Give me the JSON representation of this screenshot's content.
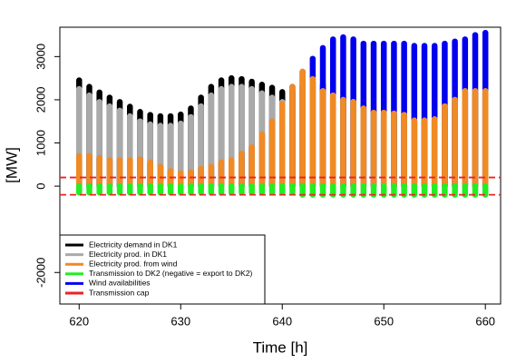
{
  "chart_data": {
    "type": "segments",
    "xlabel": "Time [h]",
    "ylabel": "[MW]",
    "x": [
      620,
      621,
      622,
      623,
      624,
      625,
      626,
      627,
      628,
      629,
      630,
      631,
      632,
      633,
      634,
      635,
      636,
      637,
      638,
      639,
      640,
      641,
      642,
      643,
      644,
      645,
      646,
      647,
      648,
      649,
      650,
      651,
      652,
      653,
      654,
      655,
      656,
      657,
      658,
      659,
      660
    ],
    "xlim": [
      618.1,
      661.5
    ],
    "xticks": [
      620,
      630,
      640,
      650,
      660
    ],
    "ylim": [
      -2730,
      3680
    ],
    "yticks": [
      -2000,
      0,
      1000,
      2000,
      3000
    ],
    "series": [
      {
        "name": "Electricity demand in DK1",
        "color": "#000000",
        "values": [
          2450,
          2300,
          2170,
          2050,
          1950,
          1840,
          1720,
          1650,
          1620,
          1620,
          1660,
          1800,
          2050,
          2300,
          2450,
          2500,
          2480,
          2420,
          2350,
          2280,
          2180,
          2200,
          2320,
          2420,
          2350,
          2150,
          2050,
          1950,
          1900,
          1750,
          1650,
          1650,
          1630,
          1500,
          1500,
          1530,
          1800,
          1950,
          2150,
          2150,
          2150
        ]
      },
      {
        "name": "Electricity prod. in DK1",
        "color": "#aaaaaa",
        "values": [
          2250,
          2100,
          1950,
          1850,
          1750,
          1620,
          1500,
          1430,
          1400,
          1400,
          1450,
          1600,
          1850,
          2100,
          2250,
          2300,
          2300,
          2250,
          2150,
          2050,
          1950,
          2250,
          2650,
          2480,
          2200,
          2100,
          2000,
          1950,
          1800,
          1700,
          1700,
          1680,
          1650,
          1520,
          1520,
          1550,
          1850,
          2000,
          2200,
          2200,
          2200
        ]
      },
      {
        "name": "Electricity prod. from wind",
        "color": "#f08a24",
        "values": [
          700,
          700,
          650,
          600,
          600,
          600,
          620,
          550,
          450,
          350,
          300,
          320,
          400,
          450,
          550,
          600,
          750,
          900,
          1200,
          1500,
          1900,
          2300,
          2650,
          2480,
          2200,
          2100,
          2000,
          1950,
          1800,
          1700,
          1700,
          1680,
          1650,
          1520,
          1520,
          1550,
          1850,
          2000,
          2200,
          2200,
          2200
        ]
      },
      {
        "name": "Transmission to DK2 (negative = export to DK2)",
        "color": "#22ee22",
        "values": [
          -150,
          -150,
          -150,
          -150,
          -150,
          -150,
          -150,
          -150,
          -150,
          -150,
          -150,
          -150,
          -150,
          -150,
          -150,
          -150,
          -150,
          -150,
          -150,
          -150,
          -150,
          -150,
          -200,
          -200,
          -200,
          -200,
          -200,
          -200,
          -200,
          -200,
          -200,
          -200,
          -200,
          -200,
          -200,
          -200,
          -200,
          -200,
          -200,
          -200,
          -200
        ]
      },
      {
        "name": "Wind availabilities",
        "color": "#0000ee",
        "values": [
          700,
          700,
          650,
          600,
          600,
          600,
          620,
          550,
          450,
          350,
          300,
          320,
          400,
          450,
          550,
          600,
          750,
          900,
          1200,
          1500,
          1900,
          2300,
          2650,
          2950,
          3200,
          3400,
          3450,
          3400,
          3300,
          3300,
          3300,
          3300,
          3300,
          3250,
          3250,
          3250,
          3300,
          3350,
          3400,
          3500,
          3550
        ]
      }
    ],
    "cap": {
      "name": "Transmission cap",
      "color": "#ee2222",
      "values": [
        200,
        -200
      ]
    }
  }
}
